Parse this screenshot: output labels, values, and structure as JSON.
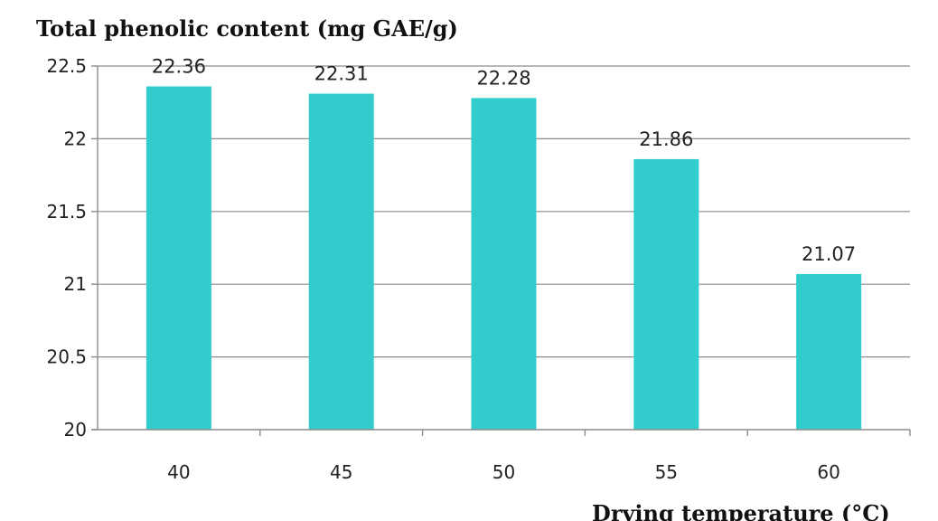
{
  "chart_data": {
    "type": "bar",
    "title": "",
    "ylabel": "Total phenolic content (mg GAE/g)",
    "xlabel": "Drying temperature (°C)",
    "categories": [
      "40",
      "45",
      "50",
      "55",
      "60"
    ],
    "values": [
      22.36,
      22.31,
      22.28,
      21.86,
      21.07
    ],
    "data_labels": [
      "22.36",
      "22.31",
      "22.28",
      "21.86",
      "21.07"
    ],
    "ylim": [
      20,
      22.5
    ],
    "yticks": [
      20,
      20.5,
      21,
      21.5,
      22,
      22.5
    ],
    "ytick_labels": [
      "20",
      "20.5",
      "21",
      "21.5",
      "22",
      "22.5"
    ],
    "grid": true,
    "legend": "none",
    "bar_color": "#33cccc"
  }
}
